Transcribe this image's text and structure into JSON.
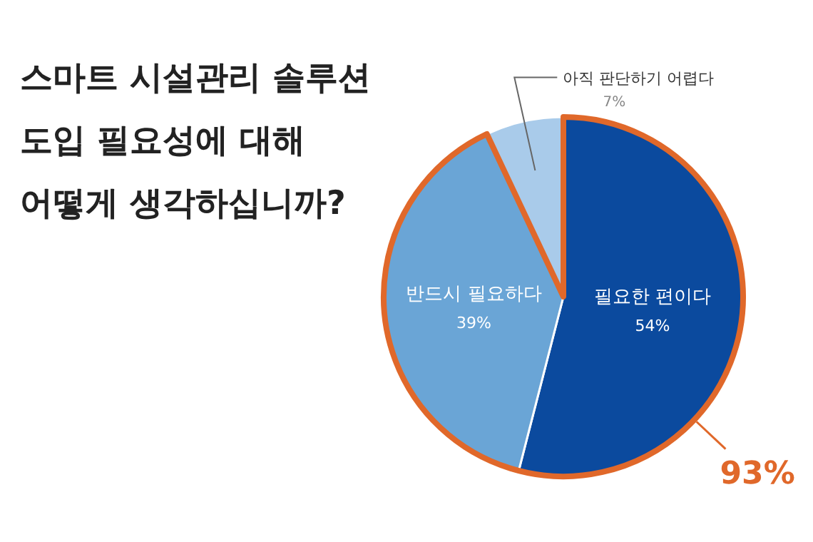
{
  "chart_data": {
    "type": "pie",
    "title": "스마트 시설관리 솔루션 도입 필요성에 대해 어떻게 생각하십니까?",
    "categories": [
      "필요한 편이다",
      "반드시 필요하다",
      "아직 판단하기 어렵다"
    ],
    "values": [
      54,
      39,
      7
    ],
    "value_labels": [
      "54%",
      "39%",
      "7%"
    ],
    "colors": [
      "#0b4a9e",
      "#6aa5d6",
      "#a9cbea"
    ],
    "annotations": [
      "93%"
    ]
  }
}
